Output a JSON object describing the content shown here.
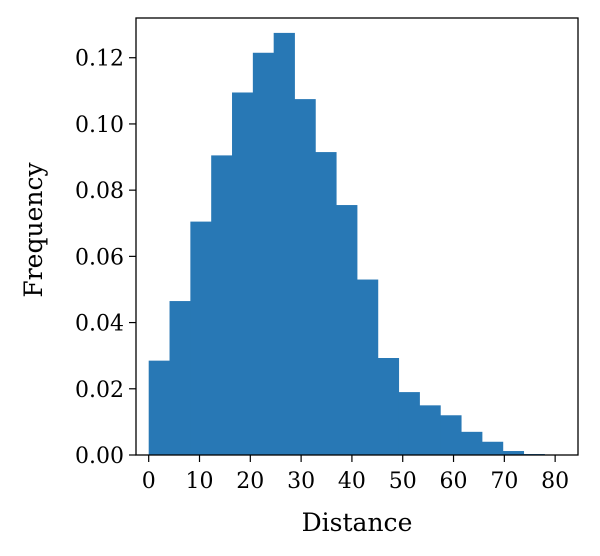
{
  "chart_data": {
    "type": "bar",
    "title": "",
    "xlabel": "Distance",
    "ylabel": "Frequency",
    "xlim": [
      -2.5,
      84.5
    ],
    "ylim": [
      0,
      0.132
    ],
    "bar_color": "#2878b5",
    "grid": false,
    "legend": "none",
    "bin_width": 4.1,
    "bin_edges": [
      0,
      4.1,
      8.2,
      12.3,
      16.4,
      20.5,
      24.6,
      28.7,
      32.8,
      36.9,
      41.0,
      45.1,
      49.2,
      53.3,
      57.4,
      61.5,
      65.6,
      69.7,
      73.8,
      77.9,
      82.0
    ],
    "values": [
      0.0285,
      0.0465,
      0.0705,
      0.0905,
      0.1095,
      0.1215,
      0.1275,
      0.1075,
      0.0915,
      0.0755,
      0.053,
      0.0293,
      0.019,
      0.015,
      0.012,
      0.007,
      0.004,
      0.0012,
      0.0003,
      0.0001
    ],
    "x_ticks": [
      0,
      10,
      20,
      30,
      40,
      50,
      60,
      70,
      80
    ],
    "y_ticks": [
      0.0,
      0.02,
      0.04,
      0.06,
      0.08,
      0.1,
      0.12
    ],
    "x_tick_labels": [
      "0",
      "10",
      "20",
      "30",
      "40",
      "50",
      "60",
      "70",
      "80"
    ],
    "y_tick_labels": [
      "0.00",
      "0.02",
      "0.04",
      "0.06",
      "0.08",
      "0.10",
      "0.12"
    ]
  }
}
